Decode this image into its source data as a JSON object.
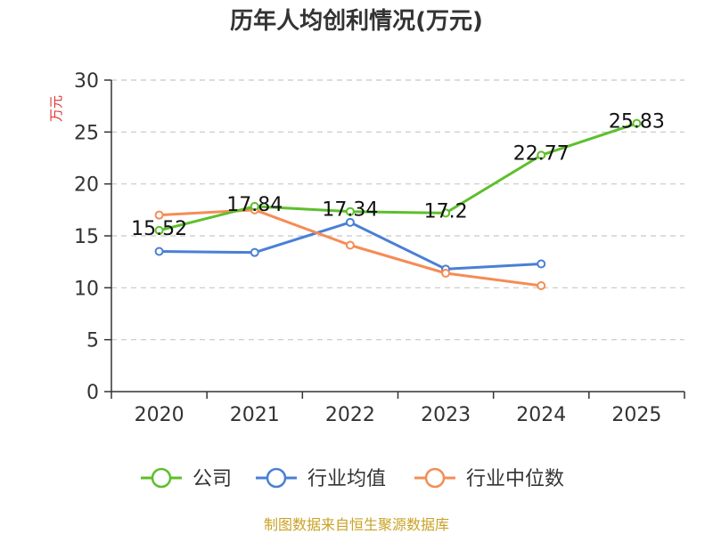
{
  "chart_data": {
    "type": "line",
    "title": "历年人均创利情况(万元)",
    "ylabel": "万元",
    "xlabel": "",
    "categories": [
      "2020",
      "2021",
      "2022",
      "2023",
      "2024",
      "2025"
    ],
    "ylim": [
      0,
      30
    ],
    "yticks": [
      0,
      5,
      10,
      15,
      20,
      25,
      30
    ],
    "grid": true,
    "legend_position": "bottom",
    "series": [
      {
        "name": "公司",
        "color": "#5dbf2c",
        "values": [
          15.52,
          17.84,
          17.34,
          17.2,
          22.77,
          25.83
        ],
        "labels": [
          "15.52",
          "17.84",
          "17.34",
          "17.2",
          "22.77",
          "25.83"
        ]
      },
      {
        "name": "行业均值",
        "color": "#4a7fd6",
        "values": [
          13.5,
          13.4,
          16.3,
          11.8,
          12.3,
          null
        ]
      },
      {
        "name": "行业中位数",
        "color": "#f58c55",
        "values": [
          17.0,
          17.5,
          14.1,
          11.4,
          10.2,
          null
        ]
      }
    ]
  },
  "source": "制图数据来自恒生聚源数据库"
}
